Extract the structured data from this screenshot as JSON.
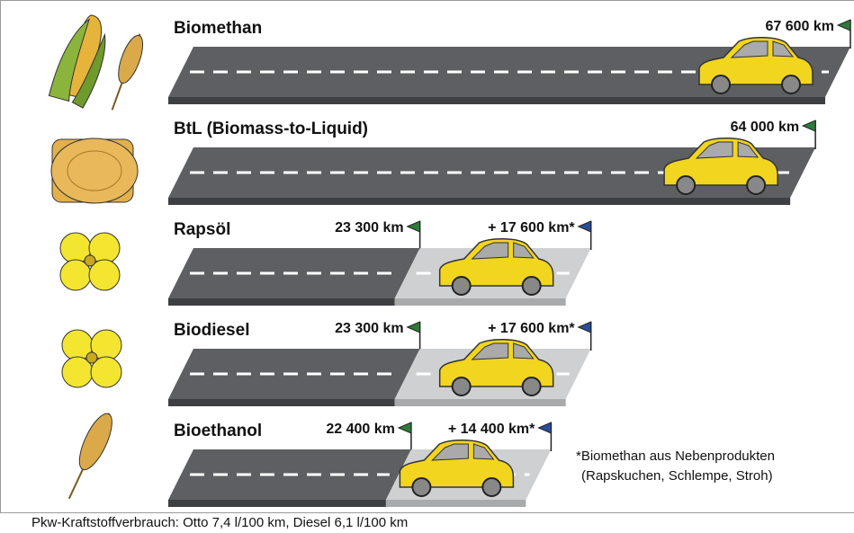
{
  "chart_data": {
    "type": "bar",
    "orientation": "horizontal",
    "stacked": true,
    "categories": [
      "Biomethan",
      "BtL (Biomass-to-Liquid)",
      "Rapsöl",
      "Biodiesel",
      "Bioethanol"
    ],
    "series": [
      {
        "color": "#5e5f62",
        "values": [
          67600,
          64000,
          23300,
          23300,
          22400
        ],
        "value_labels": [
          "67 600 km",
          "64 000 km",
          "23 300 km",
          "23 300 km",
          "22 400 km"
        ]
      },
      {
        "color": "#cfd0d2",
        "values": [
          null,
          null,
          17600,
          17600,
          14400
        ],
        "value_labels": [
          null,
          null,
          "+ 17 600 km*",
          "+ 17 600 km*",
          "+ 14 400 km*"
        ]
      }
    ],
    "footnote": [
      "*Biomethan aus Nebenprodukten",
      "(Rapskuchen, Schlempe, Stroh)"
    ],
    "note": "Pkw-Kraftstoffverbrauch: Otto 7,4 l/100 km, Diesel 6,1 l/100 km"
  }
}
